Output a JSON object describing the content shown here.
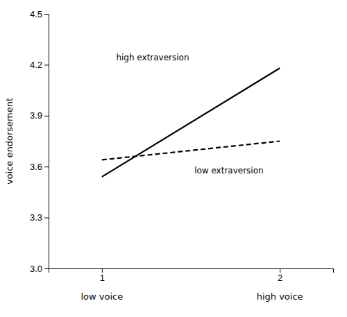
{
  "chart_data": {
    "type": "line",
    "x": [
      1,
      2
    ],
    "series": [
      {
        "values": [
          3.54,
          4.18
        ],
        "color": "#000000",
        "line_style": "solid"
      },
      {
        "values": [
          3.64,
          3.75
        ],
        "color": "#000000",
        "line_style": "dashed"
      }
    ],
    "xlim": [
      0.7,
      2.3
    ],
    "xticks": [
      1,
      2
    ],
    "xtick_sublabels": [
      "low voice",
      "high voice"
    ],
    "ylim": [
      3.0,
      4.5
    ],
    "yticks": [
      {
        "value": 3.0,
        "label": "3.0"
      },
      3.3,
      3.6,
      3.9,
      4.2,
      4.5
    ],
    "ylabel": "voice endorsement",
    "annotations": [
      {
        "text": "high extraversion",
        "x": 1.08,
        "y": 4.22
      },
      {
        "text": "low extraversion",
        "x": 1.52,
        "y": 3.605
      }
    ],
    "grid": false
  }
}
